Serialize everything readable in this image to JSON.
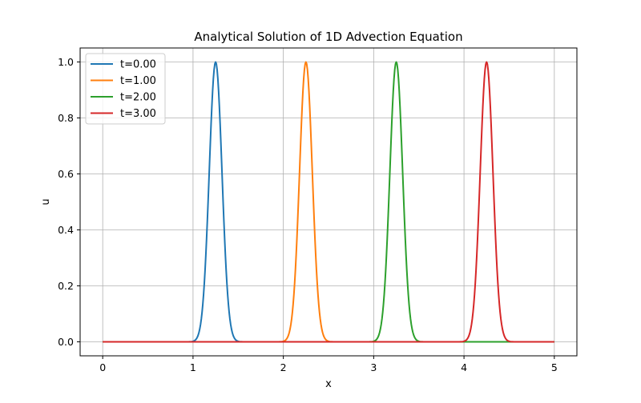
{
  "chart_data": {
    "type": "line",
    "title": "Analytical Solution of 1D Advection Equation",
    "xlabel": "x",
    "ylabel": "u",
    "xlim": [
      -0.25,
      5.25
    ],
    "ylim": [
      -0.05,
      1.05
    ],
    "xticks": [
      0,
      1,
      2,
      3,
      4,
      5
    ],
    "yticks": [
      0.0,
      0.2,
      0.4,
      0.6,
      0.8,
      1.0
    ],
    "xtick_labels": [
      "0",
      "1",
      "2",
      "3",
      "4",
      "5"
    ],
    "ytick_labels": [
      "0.0",
      "0.2",
      "0.4",
      "0.6",
      "0.8",
      "1.0"
    ],
    "grid": true,
    "legend_position": "top-left",
    "series": [
      {
        "name": "t=0.00",
        "color": "#1f77b4",
        "peak_x": 1.25,
        "peak_y": 1.0,
        "gaussian_width": 0.1
      },
      {
        "name": "t=1.00",
        "color": "#ff7f0e",
        "peak_x": 2.25,
        "peak_y": 1.0,
        "gaussian_width": 0.1
      },
      {
        "name": "t=2.00",
        "color": "#2ca02c",
        "peak_x": 3.25,
        "peak_y": 1.0,
        "gaussian_width": 0.1
      },
      {
        "name": "t=3.00",
        "color": "#d62728",
        "peak_x": 4.25,
        "peak_y": 1.0,
        "gaussian_width": 0.1
      }
    ],
    "x_domain": [
      0,
      5
    ]
  }
}
